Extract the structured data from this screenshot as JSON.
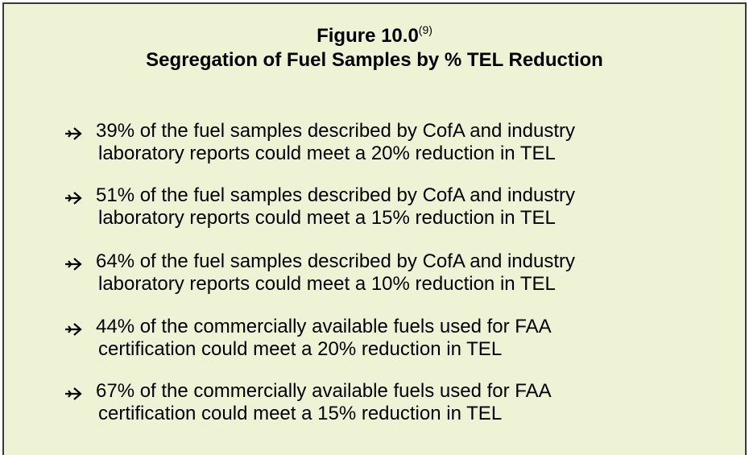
{
  "figure": {
    "label": "Figure 10.0",
    "reference": "(9)",
    "title": "Segregation of Fuel Samples by % TEL Reduction"
  },
  "bullets": [
    [
      "39% of the fuel samples described by CofA and industry",
      "laboratory reports could meet a 20% reduction in TEL"
    ],
    [
      "51% of the fuel samples described by CofA and industry",
      "laboratory reports could meet a 15% reduction in TEL"
    ],
    [
      "64% of the fuel samples described by CofA and industry",
      "laboratory reports could meet a 10% reduction in TEL"
    ],
    [
      "44% of the commercially available fuels used for FAA",
      "certification could meet a 20% reduction in TEL"
    ],
    [
      "67% of the commercially available fuels used for FAA",
      "certification could meet a 15% reduction in TEL"
    ]
  ]
}
